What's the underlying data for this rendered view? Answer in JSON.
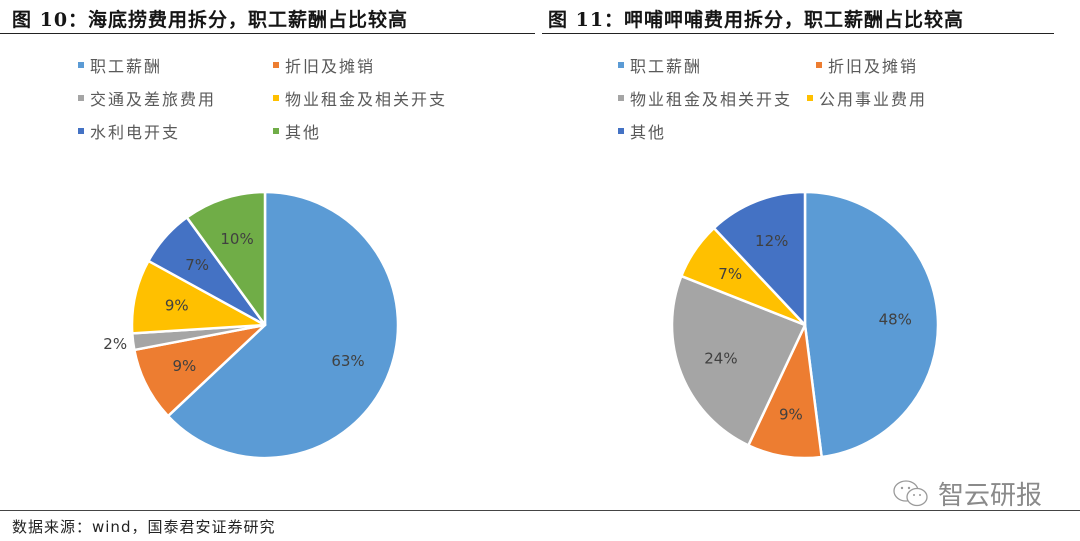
{
  "chart_data": [
    {
      "type": "pie",
      "title": "图 10：海底捞费用拆分，职工薪酬占比较高",
      "start_angle": "12 o'clock, clockwise",
      "legend_position": "top",
      "categories": [
        "职工薪酬",
        "折旧及摊销",
        "交通及差旅费用",
        "物业租金及相关开支",
        "水利电开支",
        "其他"
      ],
      "values": [
        63,
        9,
        2,
        9,
        7,
        10
      ],
      "labels": [
        "63%",
        "9%",
        "2%",
        "9%",
        "7%",
        "10%"
      ],
      "colors": [
        "#5b9bd5",
        "#ed7d31",
        "#a5a5a5",
        "#ffc000",
        "#4472c4",
        "#70ad47"
      ],
      "unit": "%"
    },
    {
      "type": "pie",
      "title": "图 11：呷哺呷哺费用拆分，职工薪酬占比较高",
      "start_angle": "12 o'clock, clockwise",
      "legend_position": "top",
      "categories": [
        "职工薪酬",
        "折旧及摊销",
        "物业租金及相关开支",
        "公用事业费用",
        "其他"
      ],
      "values": [
        48,
        9,
        24,
        7,
        12
      ],
      "labels": [
        "48%",
        "9%",
        "24%",
        "7%",
        "12%"
      ],
      "colors": [
        "#5b9bd5",
        "#ed7d31",
        "#a5a5a5",
        "#ffc000",
        "#4472c4"
      ],
      "unit": "%"
    }
  ],
  "figures": [
    {
      "title_prefix": "图 10：",
      "title": "图 10：海底捞费用拆分，职工薪酬占比较高",
      "legend": [
        {
          "label": "职工薪酬",
          "color": "#5b9bd5"
        },
        {
          "label": "折旧及摊销",
          "color": "#ed7d31"
        },
        {
          "label": "交通及差旅费用",
          "color": "#a5a5a5"
        },
        {
          "label": "物业租金及相关开支",
          "color": "#ffc000"
        },
        {
          "label": "水利电开支",
          "color": "#4472c4"
        },
        {
          "label": "其他",
          "color": "#70ad47"
        }
      ]
    },
    {
      "title": "图 11：呷哺呷哺费用拆分，职工薪酬占比较高",
      "legend": [
        {
          "label": "职工薪酬",
          "color": "#5b9bd5"
        },
        {
          "label": "折旧及摊销",
          "color": "#ed7d31"
        },
        {
          "label": "物业租金及相关开支",
          "color": "#a5a5a5"
        },
        {
          "label": "公用事业费用",
          "color": "#ffc000"
        },
        {
          "label": "其他",
          "color": "#4472c4"
        }
      ]
    }
  ],
  "footer": {
    "source": "数据来源：wind，国泰君安证券研究",
    "watermark": "智云研报"
  }
}
